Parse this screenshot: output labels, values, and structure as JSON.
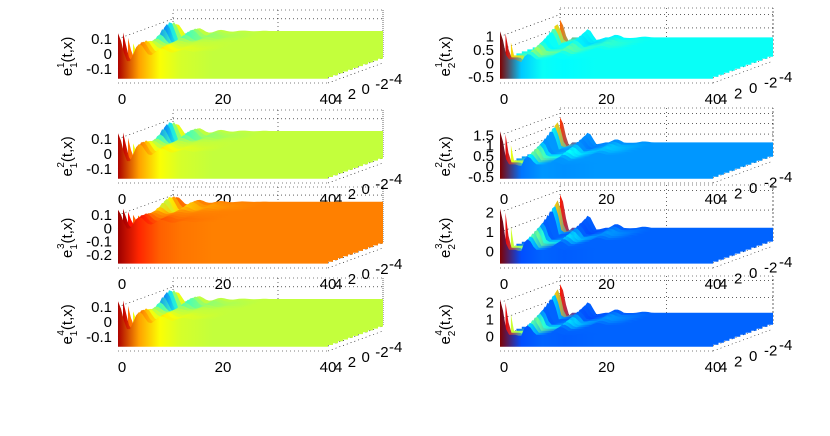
{
  "figure": {
    "type": "surface3d-grid",
    "rows": 4,
    "cols": 2
  },
  "chart_data": [
    {
      "type": "surface3d",
      "ylabel_base": "e",
      "sub": "1",
      "sup": "1",
      "ylabel_arg": "(t,x)",
      "t_ticks": [
        "0",
        "20",
        "40"
      ],
      "x_ticks": [
        "4",
        "2",
        "0",
        "-2",
        "-4"
      ],
      "z_ticks": [
        "0.1",
        "0",
        "-0.1"
      ],
      "z_values": [
        0.1,
        0,
        -0.1
      ],
      "zlim": [
        -0.15,
        0.15
      ],
      "colormap": "jet",
      "plateau_value": 0.02,
      "gridlines": true
    },
    {
      "type": "surface3d",
      "ylabel_base": "e",
      "sub": "2",
      "sup": "1",
      "ylabel_arg": "(t,x)",
      "t_ticks": [
        "0",
        "20",
        "40"
      ],
      "x_ticks": [
        "4",
        "2",
        "0",
        "-2",
        "-4"
      ],
      "z_ticks": [
        "1",
        "0.5",
        "0",
        "-0.5"
      ],
      "z_values": [
        1,
        0.5,
        0,
        -0.5
      ],
      "zlim": [
        -0.5,
        1.2
      ],
      "colormap": "jet",
      "plateau_value": 0.15,
      "gridlines": true
    },
    {
      "type": "surface3d",
      "ylabel_base": "e",
      "sub": "1",
      "sup": "2",
      "ylabel_arg": "(t,x)",
      "t_ticks": [
        "0",
        "20",
        "40"
      ],
      "x_ticks": [
        "4",
        "2",
        "0",
        "-2",
        "-4"
      ],
      "z_ticks": [
        "0.1",
        "0",
        "-0.1"
      ],
      "z_values": [
        0.1,
        0,
        -0.1
      ],
      "zlim": [
        -0.15,
        0.15
      ],
      "colormap": "jet",
      "plateau_value": 0.02,
      "gridlines": true
    },
    {
      "type": "surface3d",
      "ylabel_base": "e",
      "sub": "2",
      "sup": "2",
      "ylabel_arg": "(t,x)",
      "t_ticks": [
        "0",
        "20",
        "40"
      ],
      "x_ticks": [
        "4",
        "2",
        "0",
        "-2",
        "-4"
      ],
      "z_ticks": [
        "1.5",
        "1",
        "0.5",
        "0",
        "-0.5"
      ],
      "z_values": [
        1.5,
        1,
        0.5,
        0,
        -0.5
      ],
      "zlim": [
        -0.5,
        1.7
      ],
      "colormap": "jet",
      "plateau_value": 0.1,
      "gridlines": true
    },
    {
      "type": "surface3d",
      "ylabel_base": "e",
      "sub": "1",
      "sup": "3",
      "ylabel_arg": "(t,x)",
      "t_ticks": [
        "0",
        "20",
        "40"
      ],
      "x_ticks": [
        "4",
        "2",
        "0",
        "-2",
        "-4"
      ],
      "z_ticks": [
        "0.1",
        "0",
        "-0.1",
        "-0.2"
      ],
      "z_values": [
        0.1,
        0,
        -0.1,
        -0.2
      ],
      "zlim": [
        -0.25,
        0.15
      ],
      "colormap": "jet",
      "plateau_value": 0.05,
      "gridlines": true
    },
    {
      "type": "surface3d",
      "ylabel_base": "e",
      "sub": "2",
      "sup": "3",
      "ylabel_arg": "(t,x)",
      "t_ticks": [
        "0",
        "20",
        "40"
      ],
      "x_ticks": [
        "4",
        "2",
        "0",
        "-2",
        "-4"
      ],
      "z_ticks": [
        "2",
        "1",
        "0"
      ],
      "z_values": [
        2,
        1,
        0
      ],
      "zlim": [
        -0.5,
        2.2
      ],
      "colormap": "jet",
      "plateau_value": 0.1,
      "gridlines": true
    },
    {
      "type": "surface3d",
      "ylabel_base": "e",
      "sub": "1",
      "sup": "4",
      "ylabel_arg": "(t,x)",
      "t_ticks": [
        "0",
        "20",
        "40"
      ],
      "x_ticks": [
        "4",
        "2",
        "0",
        "-2",
        "-4"
      ],
      "z_ticks": [
        "0.1",
        "0",
        "-0.1"
      ],
      "z_values": [
        0.1,
        0,
        -0.1
      ],
      "zlim": [
        -0.15,
        0.15
      ],
      "colormap": "jet",
      "plateau_value": 0.02,
      "gridlines": true
    },
    {
      "type": "surface3d",
      "ylabel_base": "e",
      "sub": "2",
      "sup": "4",
      "ylabel_arg": "(t,x)",
      "t_ticks": [
        "0",
        "20",
        "40"
      ],
      "x_ticks": [
        "4",
        "2",
        "0",
        "-2",
        "-4"
      ],
      "z_ticks": [
        "2",
        "1",
        "0"
      ],
      "z_values": [
        2,
        1,
        0
      ],
      "zlim": [
        -0.5,
        2.2
      ],
      "colormap": "jet",
      "plateau_value": 0.1,
      "gridlines": true
    }
  ]
}
